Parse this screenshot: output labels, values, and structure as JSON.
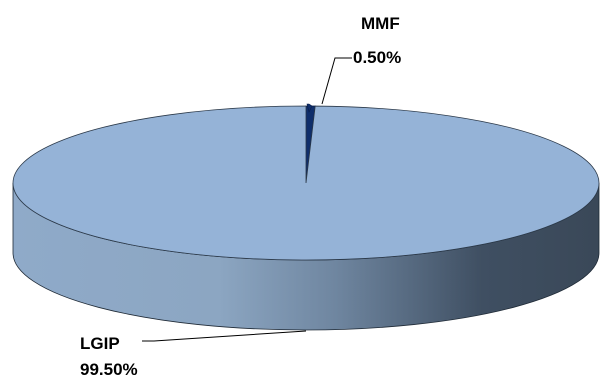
{
  "chart_data": {
    "type": "pie",
    "style": "3d",
    "title": "",
    "slices": [
      {
        "label": "LGIP",
        "value": 99.5,
        "value_label": "99.50%",
        "color": "#95B3D7"
      },
      {
        "label": "MMF",
        "value": 0.5,
        "value_label": "0.50%",
        "color": "#0F2E6B"
      }
    ],
    "legend": "none"
  }
}
